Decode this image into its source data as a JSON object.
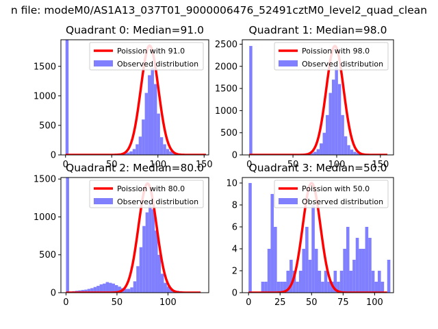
{
  "figure": {
    "suptitle": "n file: modeM0/AS1A13_037T01_9000006476_52491cztM0_level2_quad_clean"
  },
  "chart_data": [
    {
      "type": "bar",
      "title": "Quadrant 0: Median=91.0",
      "xlim": [
        -5,
        155
      ],
      "ylim": [
        0,
        1950
      ],
      "xticks": [
        0,
        50,
        100,
        150
      ],
      "yticks": [
        0,
        500,
        1000,
        1500
      ],
      "bin_width": 3.3,
      "legend": {
        "position": "top-right",
        "line_label": "Poission with 91.0",
        "bar_label": "Observed distribution"
      },
      "poisson_mean": 91.0,
      "poisson_peak": 1850,
      "curve_range": [
        0,
        152
      ],
      "bars": [
        [
          0,
          1950
        ],
        [
          3.3,
          10
        ],
        [
          6.6,
          10
        ],
        [
          9.9,
          10
        ],
        [
          13.2,
          10
        ],
        [
          16.5,
          10
        ],
        [
          19.8,
          10
        ],
        [
          23.1,
          10
        ],
        [
          26.4,
          10
        ],
        [
          29.7,
          10
        ],
        [
          33,
          10
        ],
        [
          36.3,
          10
        ],
        [
          39.6,
          10
        ],
        [
          42.9,
          10
        ],
        [
          46.2,
          10
        ],
        [
          49.5,
          15
        ],
        [
          52.8,
          20
        ],
        [
          56.1,
          25
        ],
        [
          59.4,
          25
        ],
        [
          62.7,
          30
        ],
        [
          66,
          40
        ],
        [
          69.3,
          60
        ],
        [
          72.6,
          100
        ],
        [
          75.9,
          180
        ],
        [
          79.2,
          310
        ],
        [
          82.5,
          600
        ],
        [
          85.8,
          1050
        ],
        [
          89.1,
          1350
        ],
        [
          92.4,
          1480
        ],
        [
          95.7,
          1200
        ],
        [
          99,
          700
        ],
        [
          102.3,
          300
        ],
        [
          105.6,
          180
        ],
        [
          108.9,
          100
        ],
        [
          112.2,
          60
        ],
        [
          115.5,
          40
        ],
        [
          118.8,
          30
        ],
        [
          122.1,
          25
        ],
        [
          125.4,
          20
        ],
        [
          128.7,
          15
        ],
        [
          132,
          15
        ],
        [
          135.3,
          10
        ],
        [
          138.6,
          10
        ],
        [
          141.9,
          10
        ],
        [
          145.2,
          10
        ],
        [
          148.5,
          10
        ]
      ]
    },
    {
      "type": "bar",
      "title": "Quadrant 1: Median=98.0",
      "xlim": [
        -8,
        165
      ],
      "ylim": [
        0,
        2600
      ],
      "xticks": [
        0,
        50,
        100,
        150
      ],
      "yticks": [
        0,
        500,
        1000,
        1500,
        2000,
        2500
      ],
      "bin_width": 3.5,
      "legend": {
        "position": "top-right",
        "line_label": "Poission with 98.0",
        "bar_label": "Observed distribution"
      },
      "poisson_mean": 98.0,
      "poisson_peak": 2460,
      "curve_range": [
        0,
        158
      ],
      "bars": [
        [
          0,
          2460
        ],
        [
          3.5,
          10
        ],
        [
          7,
          10
        ],
        [
          10.5,
          10
        ],
        [
          14,
          10
        ],
        [
          17.5,
          10
        ],
        [
          21,
          10
        ],
        [
          24.5,
          10
        ],
        [
          28,
          10
        ],
        [
          31.5,
          10
        ],
        [
          35,
          10
        ],
        [
          38.5,
          10
        ],
        [
          42,
          10
        ],
        [
          45.5,
          10
        ],
        [
          49,
          10
        ],
        [
          52.5,
          15
        ],
        [
          56,
          15
        ],
        [
          59.5,
          20
        ],
        [
          63,
          25
        ],
        [
          66.5,
          30
        ],
        [
          70,
          40
        ],
        [
          73.5,
          70
        ],
        [
          77,
          130
        ],
        [
          80.5,
          260
        ],
        [
          84,
          500
        ],
        [
          87.5,
          900
        ],
        [
          91,
          1400
        ],
        [
          94.5,
          1700
        ],
        [
          98,
          2000
        ],
        [
          101.5,
          1600
        ],
        [
          105,
          900
        ],
        [
          108.5,
          420
        ],
        [
          112,
          220
        ],
        [
          115.5,
          120
        ],
        [
          119,
          70
        ],
        [
          122.5,
          45
        ],
        [
          126,
          35
        ],
        [
          129.5,
          30
        ],
        [
          133,
          25
        ],
        [
          136.5,
          20
        ],
        [
          140,
          15
        ],
        [
          143.5,
          15
        ],
        [
          147,
          10
        ],
        [
          150.5,
          10
        ],
        [
          154,
          10
        ]
      ]
    },
    {
      "type": "bar",
      "title": "Quadrant 2: Median=80.0",
      "xlim": [
        -5,
        140
      ],
      "ylim": [
        0,
        1520
      ],
      "xticks": [
        0,
        50,
        100
      ],
      "yticks": [
        0,
        500,
        1000,
        1500
      ],
      "bin_width": 3,
      "legend": {
        "position": "top-right",
        "line_label": "Poission with 80.0",
        "bar_label": "Observed distribution"
      },
      "poisson_mean": 80.0,
      "poisson_peak": 1440,
      "curve_range": [
        0,
        132
      ],
      "bars": [
        [
          0,
          1520
        ],
        [
          3,
          15
        ],
        [
          6,
          20
        ],
        [
          9,
          25
        ],
        [
          12,
          30
        ],
        [
          15,
          35
        ],
        [
          18,
          40
        ],
        [
          21,
          50
        ],
        [
          24,
          60
        ],
        [
          27,
          75
        ],
        [
          30,
          90
        ],
        [
          33,
          110
        ],
        [
          36,
          120
        ],
        [
          39,
          140
        ],
        [
          42,
          130
        ],
        [
          45,
          120
        ],
        [
          48,
          100
        ],
        [
          51,
          80
        ],
        [
          54,
          60
        ],
        [
          57,
          50
        ],
        [
          60,
          50
        ],
        [
          63,
          70
        ],
        [
          66,
          150
        ],
        [
          69,
          350
        ],
        [
          72,
          600
        ],
        [
          75,
          880
        ],
        [
          78,
          1060
        ],
        [
          81,
          1200
        ],
        [
          84,
          1100
        ],
        [
          87,
          820
        ],
        [
          90,
          500
        ],
        [
          93,
          250
        ],
        [
          96,
          130
        ],
        [
          99,
          80
        ],
        [
          102,
          50
        ],
        [
          105,
          30
        ],
        [
          108,
          25
        ],
        [
          111,
          20
        ],
        [
          114,
          15
        ],
        [
          117,
          10
        ],
        [
          120,
          10
        ],
        [
          123,
          10
        ],
        [
          126,
          10
        ],
        [
          129,
          10
        ]
      ]
    },
    {
      "type": "bar",
      "title": "Quadrant 3: Median=50.0",
      "xlim": [
        -5,
        115
      ],
      "ylim": [
        0,
        10.5
      ],
      "xticks": [
        0,
        25,
        50,
        75,
        100
      ],
      "yticks": [
        0,
        2,
        4,
        6,
        8,
        10
      ],
      "bin_width": 2.5,
      "legend": {
        "position": "top-right",
        "line_label": "Poission with 50.0",
        "bar_label": "Observed distribution"
      },
      "poisson_mean": 50.0,
      "poisson_peak": 10,
      "curve_range": [
        0,
        110
      ],
      "bars": [
        [
          0,
          10
        ],
        [
          10,
          1
        ],
        [
          12.5,
          1
        ],
        [
          15,
          4
        ],
        [
          17.5,
          9
        ],
        [
          20,
          6
        ],
        [
          22.5,
          1
        ],
        [
          25,
          1
        ],
        [
          27.5,
          1
        ],
        [
          30,
          2
        ],
        [
          32.5,
          3
        ],
        [
          35,
          2
        ],
        [
          37.5,
          1
        ],
        [
          40,
          2
        ],
        [
          42.5,
          4
        ],
        [
          45,
          6
        ],
        [
          47.5,
          3
        ],
        [
          50,
          8
        ],
        [
          52.5,
          4
        ],
        [
          55,
          2
        ],
        [
          57.5,
          1
        ],
        [
          60,
          2
        ],
        [
          62.5,
          1
        ],
        [
          65,
          1
        ],
        [
          67.5,
          2
        ],
        [
          70,
          1
        ],
        [
          72.5,
          2
        ],
        [
          75,
          4
        ],
        [
          77.5,
          6
        ],
        [
          80,
          2
        ],
        [
          82.5,
          3
        ],
        [
          85,
          5
        ],
        [
          87.5,
          4
        ],
        [
          90,
          4
        ],
        [
          92.5,
          6
        ],
        [
          95,
          5
        ],
        [
          97.5,
          2
        ],
        [
          100,
          1
        ],
        [
          102.5,
          2
        ],
        [
          105,
          1
        ],
        [
          110,
          3
        ]
      ]
    }
  ]
}
